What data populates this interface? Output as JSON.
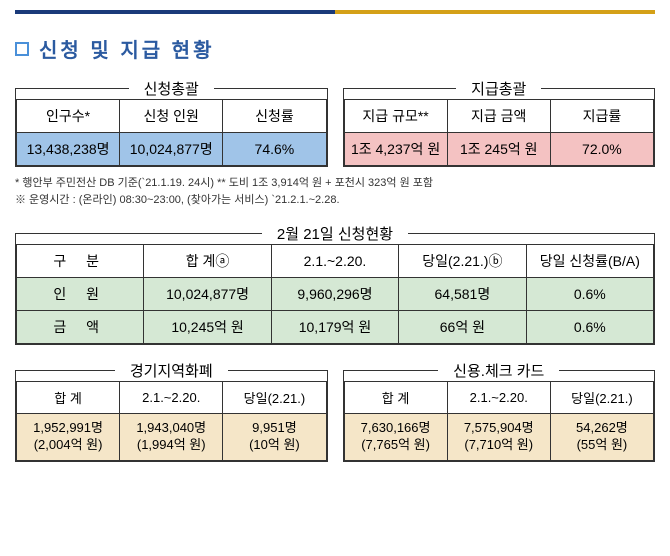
{
  "header": {
    "title": "신청 및 지급 현황"
  },
  "application_summary": {
    "legend": "신청총괄",
    "headers": [
      "인구수*",
      "신청 인원",
      "신청률"
    ],
    "row": [
      "13,438,238명",
      "10,024,877명",
      "74.6%"
    ],
    "row_bg": "#a0c4e8"
  },
  "payment_summary": {
    "legend": "지급총괄",
    "headers": [
      "지급 규모**",
      "지급 금액",
      "지급률"
    ],
    "row": [
      "1조 4,237억 원",
      "1조 245억 원",
      "72.0%"
    ],
    "row_bg": "#f4c2c2"
  },
  "footnotes": {
    "line1": "* 행안부 주민전산 DB 기준(`21.1.19. 24시)   ** 도비 1조 3,914억 원 + 포천시 323억 원 포함",
    "line2": "※ 운영시간 : (온라인) 08:30~23:00, (찾아가는 서비스) `21.2.1.~2.28."
  },
  "daily_status": {
    "legend": "2월 21일 신청현황",
    "headers": [
      "구 분",
      "합 계ⓐ",
      "2.1.~2.20.",
      "당일(2.21.)ⓑ",
      "당일 신청률(B/A)"
    ],
    "rows": [
      [
        "인 원",
        "10,024,877명",
        "9,960,296명",
        "64,581명",
        "0.6%"
      ],
      [
        "금 액",
        "10,245억 원",
        "10,179억 원",
        "66억 원",
        "0.6%"
      ]
    ],
    "row_bg": "#d5e8d4"
  },
  "local_currency": {
    "legend": "경기지역화폐",
    "headers": [
      "합 계",
      "2.1.~2.20.",
      "당일(2.21.)"
    ],
    "row": [
      "1,952,991명\n(2,004억 원)",
      "1,943,040명\n(1,994억 원)",
      "9,951명\n(10억 원)"
    ],
    "row_bg": "#f5e6c8"
  },
  "credit_check": {
    "legend": "신용.체크 카드",
    "headers": [
      "합 계",
      "2.1.~2.20.",
      "당일(2.21.)"
    ],
    "row": [
      "7,630,166명\n(7,765억 원)",
      "7,575,904명\n(7,710억 원)",
      "54,262명\n(55억 원)"
    ],
    "row_bg": "#f5e6c8"
  },
  "colors": {
    "title_color": "#2b5aa0",
    "bullet_border": "#4a90d9",
    "table_border": "#333333"
  }
}
